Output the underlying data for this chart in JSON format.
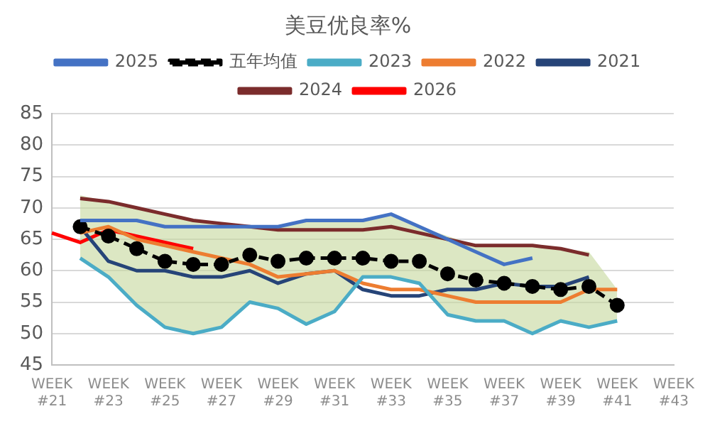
{
  "chart_data": {
    "type": "line",
    "title": "美豆优良率%",
    "categories": [
      "WEEK #21",
      null,
      "WEEK #23",
      null,
      "WEEK #25",
      null,
      "WEEK #27",
      null,
      "WEEK #29",
      null,
      "WEEK #31",
      null,
      "WEEK #33",
      null,
      "WEEK #35",
      null,
      "WEEK #37",
      null,
      "WEEK #39",
      null,
      "WEEK #41",
      null,
      "WEEK #43"
    ],
    "series": [
      {
        "name": "2025",
        "color": "#4472c4",
        "values": [
          null,
          68,
          68,
          68,
          67,
          67,
          67,
          67,
          67,
          68,
          68,
          68,
          69,
          67,
          65,
          63,
          61,
          62,
          null,
          null,
          null,
          null,
          null
        ]
      },
      {
        "name": "五年均值",
        "color": "#000000",
        "line_style": "dashed",
        "marker": "circle",
        "values": [
          null,
          67,
          65.5,
          63.5,
          61.5,
          61,
          61,
          62.5,
          61.5,
          62,
          62,
          62,
          61.5,
          61.5,
          59.5,
          58.5,
          58,
          57.5,
          57,
          57.5,
          54.5,
          null,
          null
        ],
        "lower": [
          null,
          62,
          59,
          54.5,
          51,
          50,
          51,
          55,
          54,
          51.5,
          53.5,
          59,
          59,
          58,
          53,
          52,
          52,
          50,
          52,
          51,
          52,
          null,
          null
        ],
        "upper": [
          null,
          72,
          71,
          70,
          69,
          68,
          67.5,
          67,
          67,
          68,
          68,
          68,
          69,
          67,
          65.5,
          64,
          64,
          64,
          63.5,
          63,
          57,
          null,
          null
        ]
      },
      {
        "name": "2023",
        "color": "#4bacc6",
        "values": [
          null,
          62,
          59,
          54.5,
          51,
          50,
          51,
          55,
          54,
          51.5,
          53.5,
          59,
          59,
          58,
          53,
          52,
          52,
          50,
          52,
          51,
          52,
          null,
          null
        ]
      },
      {
        "name": "2022",
        "color": "#ed7d31",
        "values": [
          null,
          66,
          67,
          65,
          64,
          63,
          62,
          61,
          59,
          59.5,
          60,
          58,
          57,
          57,
          56,
          55,
          55,
          55,
          55,
          57,
          57,
          null,
          null
        ]
      },
      {
        "name": "2021",
        "color": "#264478",
        "values": [
          null,
          67,
          61.5,
          60,
          60,
          59,
          59,
          60,
          58,
          59.5,
          60,
          57,
          56,
          56,
          57,
          57,
          58,
          57.5,
          57.5,
          59,
          null,
          null,
          null
        ]
      },
      {
        "name": "2024",
        "color": "#7b2c2c",
        "values": [
          null,
          71.5,
          71,
          70,
          69,
          68,
          67.5,
          67,
          66.5,
          66.5,
          66.5,
          66.5,
          67,
          66,
          65,
          64,
          64,
          64,
          63.5,
          62.5,
          null,
          null,
          null
        ]
      },
      {
        "name": "2026",
        "color": "#ff0000",
        "values": [
          66,
          64.5,
          66.5,
          65.5,
          64.5,
          63.5,
          null,
          null,
          null,
          null,
          null,
          null,
          null,
          null,
          null,
          null,
          null,
          null,
          null,
          null,
          null,
          null,
          null
        ]
      }
    ],
    "ylim": [
      45,
      85
    ],
    "yticks": [
      45,
      50,
      55,
      60,
      65,
      70,
      75,
      80,
      85
    ],
    "grid": "y",
    "legend": "top",
    "marker": "none",
    "line_style": "solid"
  }
}
